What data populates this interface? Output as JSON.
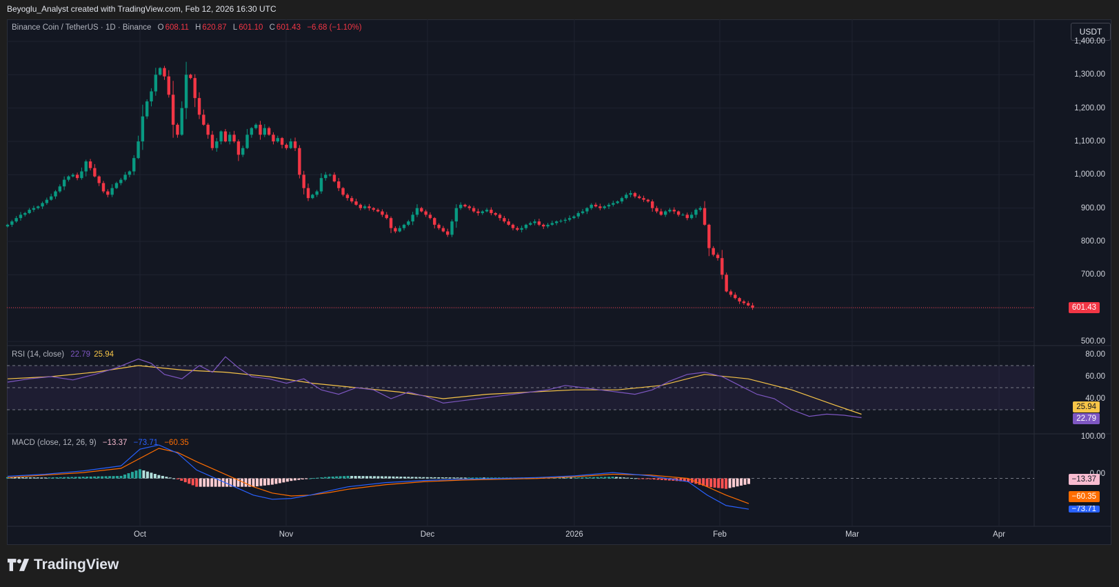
{
  "header": {
    "attribution": "Beyoglu_Analyst created with TradingView.com, Feb 12, 2026 16:30 UTC"
  },
  "main_legend": {
    "symbol": "Binance Coin / TetherUS · 1D · Binance",
    "o_label": "O",
    "o": "608.11",
    "h_label": "H",
    "h": "620.87",
    "l_label": "L",
    "l": "601.10",
    "c_label": "C",
    "c": "601.43",
    "change": "−6.68 (−1.10%)"
  },
  "currency_button": "USDT",
  "price_axis": {
    "labels": [
      "1,400.00",
      "1,300.00",
      "1,200.00",
      "1,100.00",
      "1,000.00",
      "900.00",
      "800.00",
      "700.00",
      "500.00"
    ],
    "last_price": "601.43"
  },
  "rsi": {
    "label": "RSI (14, close)",
    "rsi_value": "22.79",
    "ma_value": "25.94",
    "axis_labels": [
      "80.00",
      "60.00",
      "40.00"
    ],
    "badge_ma": "25.94",
    "badge_rsi": "22.79"
  },
  "macd": {
    "label": "MACD (close, 12, 26, 9)",
    "hist_value": "−13.37",
    "macd_value": "−73.71",
    "signal_value": "−60.35",
    "axis_labels": [
      "100.00",
      "0.00"
    ],
    "badge_hist": "−13.37",
    "badge_signal": "−60.35",
    "badge_macd": "−73.71"
  },
  "time_axis": [
    "Oct",
    "Nov",
    "Dec",
    "2026",
    "Feb",
    "Mar",
    "Apr"
  ],
  "brand": {
    "name": "TradingView"
  },
  "colors": {
    "up": "#089981",
    "down": "#f23645",
    "rsi": "#7e57c2",
    "rsi_ma": "#f7c548",
    "macd": "#2962ff",
    "signal": "#ff6d00"
  },
  "chart_data": [
    {
      "type": "candlestick",
      "title": "Binance Coin / TetherUS · 1D · Binance",
      "ylim": [
        500,
        1400
      ],
      "x_range": [
        "2025-09-02",
        "2026-04-08"
      ],
      "daily_closes_from_2025-09-02_to_2026-02-12": [
        850,
        860,
        870,
        880,
        885,
        895,
        900,
        905,
        915,
        925,
        935,
        950,
        965,
        985,
        995,
        1000,
        990,
        1010,
        1040,
        1020,
        995,
        975,
        950,
        940,
        960,
        975,
        985,
        1000,
        1010,
        1050,
        1100,
        1175,
        1220,
        1250,
        1300,
        1320,
        1295,
        1240,
        1150,
        1120,
        1200,
        1300,
        1290,
        1230,
        1180,
        1150,
        1120,
        1080,
        1100,
        1130,
        1100,
        1120,
        1100,
        1060,
        1080,
        1120,
        1140,
        1150,
        1120,
        1140,
        1120,
        1100,
        1110,
        1090,
        1080,
        1100,
        1080,
        1000,
        960,
        930,
        940,
        950,
        990,
        1000,
        1000,
        980,
        960,
        940,
        930,
        920,
        910,
        900,
        905,
        900,
        895,
        890,
        880,
        870,
        840,
        830,
        840,
        850,
        860,
        880,
        900,
        890,
        880,
        870,
        850,
        840,
        830,
        820,
        860,
        900,
        910,
        905,
        900,
        890,
        885,
        890,
        895,
        885,
        880,
        870,
        860,
        850,
        840,
        835,
        840,
        850,
        855,
        860,
        850,
        845,
        850,
        855,
        860,
        862,
        865,
        870,
        875,
        885,
        890,
        900,
        910,
        905,
        900,
        905,
        910,
        915,
        920,
        930,
        940,
        945,
        935,
        930,
        925,
        920,
        900,
        890,
        880,
        890,
        895,
        890,
        880,
        880,
        870,
        880,
        895,
        900,
        850,
        780,
        760,
        750,
        700,
        650,
        640,
        630,
        620,
        615,
        608,
        601.43
      ]
    },
    {
      "type": "line",
      "title": "RSI (14, close)",
      "ylim": [
        20,
        80
      ],
      "series": [
        {
          "name": "RSI",
          "last": 22.79,
          "points": [
            [
              0,
              55
            ],
            [
              5,
              58
            ],
            [
              10,
              60
            ],
            [
              15,
              57
            ],
            [
              20,
              62
            ],
            [
              25,
              68
            ],
            [
              30,
              76
            ],
            [
              33,
              72
            ],
            [
              36,
              62
            ],
            [
              40,
              58
            ],
            [
              44,
              70
            ],
            [
              47,
              64
            ],
            [
              50,
              78
            ],
            [
              53,
              68
            ],
            [
              56,
              60
            ],
            [
              60,
              58
            ],
            [
              64,
              54
            ],
            [
              68,
              58
            ],
            [
              72,
              48
            ],
            [
              76,
              44
            ],
            [
              80,
              50
            ],
            [
              84,
              48
            ],
            [
              88,
              40
            ],
            [
              92,
              46
            ],
            [
              96,
              42
            ],
            [
              100,
              36
            ],
            [
              104,
              38
            ],
            [
              108,
              40
            ],
            [
              112,
              42
            ],
            [
              116,
              44
            ],
            [
              120,
              46
            ],
            [
              124,
              48
            ],
            [
              128,
              52
            ],
            [
              132,
              50
            ],
            [
              136,
              48
            ],
            [
              140,
              46
            ],
            [
              144,
              44
            ],
            [
              148,
              48
            ],
            [
              152,
              56
            ],
            [
              156,
              62
            ],
            [
              160,
              64
            ],
            [
              164,
              60
            ],
            [
              168,
              52
            ],
            [
              172,
              44
            ],
            [
              176,
              40
            ],
            [
              180,
              30
            ],
            [
              184,
              24
            ],
            [
              188,
              26
            ],
            [
              192,
              25
            ],
            [
              196,
              22.79
            ]
          ]
        },
        {
          "name": "RSI-based MA",
          "last": 25.94,
          "points": [
            [
              0,
              58
            ],
            [
              10,
              60
            ],
            [
              20,
              64
            ],
            [
              30,
              70
            ],
            [
              40,
              66
            ],
            [
              50,
              64
            ],
            [
              60,
              60
            ],
            [
              70,
              54
            ],
            [
              80,
              50
            ],
            [
              90,
              46
            ],
            [
              100,
              40
            ],
            [
              110,
              44
            ],
            [
              120,
              46
            ],
            [
              130,
              48
            ],
            [
              140,
              48
            ],
            [
              150,
              52
            ],
            [
              160,
              62
            ],
            [
              170,
              58
            ],
            [
              180,
              48
            ],
            [
              190,
              34
            ],
            [
              196,
              25.94
            ]
          ]
        }
      ]
    },
    {
      "type": "bar+line",
      "title": "MACD (close, 12, 26, 9)",
      "ylim": [
        -80,
        100
      ],
      "series": [
        {
          "name": "MACD",
          "last": -73.71,
          "points": [
            [
              0,
              5
            ],
            [
              10,
              10
            ],
            [
              20,
              18
            ],
            [
              30,
              30
            ],
            [
              35,
              70
            ],
            [
              40,
              80
            ],
            [
              45,
              60
            ],
            [
              50,
              20
            ],
            [
              55,
              0
            ],
            [
              60,
              -20
            ],
            [
              65,
              -40
            ],
            [
              70,
              -50
            ],
            [
              75,
              -48
            ],
            [
              80,
              -40
            ],
            [
              85,
              -30
            ],
            [
              90,
              -20
            ],
            [
              100,
              -10
            ],
            [
              110,
              -5
            ],
            [
              120,
              -2
            ],
            [
              130,
              0
            ],
            [
              140,
              2
            ],
            [
              150,
              6
            ],
            [
              160,
              14
            ],
            [
              170,
              6
            ],
            [
              180,
              -8
            ],
            [
              185,
              -40
            ],
            [
              190,
              -65
            ],
            [
              196,
              -73.71
            ]
          ]
        },
        {
          "name": "Signal",
          "last": -60.35,
          "points": [
            [
              0,
              2
            ],
            [
              10,
              8
            ],
            [
              20,
              14
            ],
            [
              30,
              24
            ],
            [
              40,
              72
            ],
            [
              45,
              62
            ],
            [
              50,
              40
            ],
            [
              55,
              20
            ],
            [
              60,
              0
            ],
            [
              65,
              -20
            ],
            [
              70,
              -35
            ],
            [
              75,
              -42
            ],
            [
              80,
              -40
            ],
            [
              85,
              -34
            ],
            [
              90,
              -26
            ],
            [
              100,
              -15
            ],
            [
              110,
              -8
            ],
            [
              120,
              -4
            ],
            [
              130,
              -2
            ],
            [
              140,
              0
            ],
            [
              150,
              4
            ],
            [
              160,
              10
            ],
            [
              170,
              8
            ],
            [
              180,
              0
            ],
            [
              185,
              -20
            ],
            [
              190,
              -40
            ],
            [
              196,
              -60.35
            ]
          ]
        },
        {
          "name": "Histogram",
          "last": -13.37
        }
      ]
    }
  ]
}
